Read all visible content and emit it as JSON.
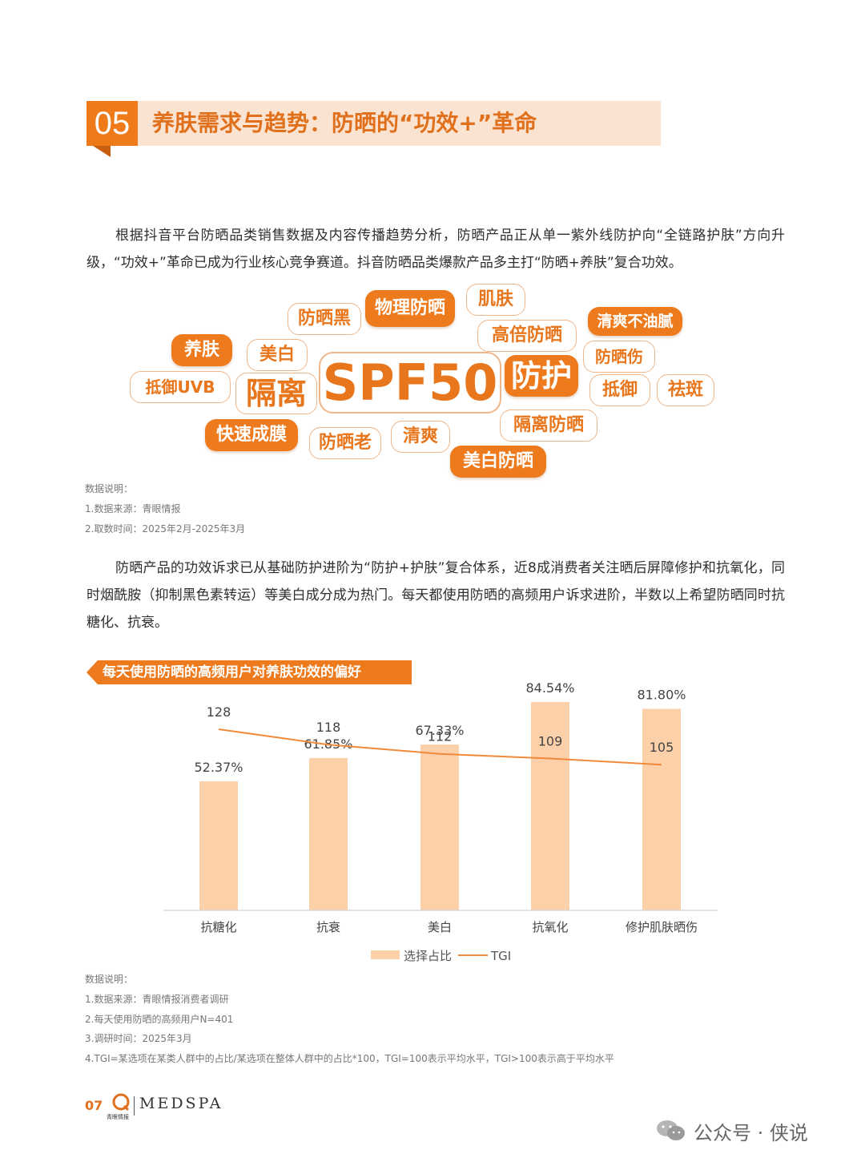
{
  "section": {
    "number": "05",
    "title": "养肤需求与趋势：防晒的“功效+”革命"
  },
  "paragraph1": "根据抖音平台防晒品类销售数据及内容传播趋势分析，防晒产品正从单一紫外线防护向“全链路护肤”方向升级，“功效+”革命已成为行业核心竞争赛道。抖音防晒品类爆款产品多主打“防晒+养肤”复合功效。",
  "word_cloud": {
    "tags": [
      {
        "text": "SPF50",
        "style": "outline",
        "emphasis": "largest"
      },
      {
        "text": "防护",
        "style": "filled",
        "emphasis": "large"
      },
      {
        "text": "隔离",
        "style": "outline",
        "emphasis": "large"
      },
      {
        "text": "物理防晒",
        "style": "filled"
      },
      {
        "text": "防晒黑",
        "style": "outline"
      },
      {
        "text": "肌肤",
        "style": "outline"
      },
      {
        "text": "高倍防晒",
        "style": "outline"
      },
      {
        "text": "清爽不油腻",
        "style": "filled"
      },
      {
        "text": "养肤",
        "style": "filled"
      },
      {
        "text": "美白",
        "style": "outline"
      },
      {
        "text": "防晒伤",
        "style": "outline"
      },
      {
        "text": "抵御UVB",
        "style": "outline"
      },
      {
        "text": "抵御",
        "style": "outline"
      },
      {
        "text": "祛斑",
        "style": "outline"
      },
      {
        "text": "快速成膜",
        "style": "filled"
      },
      {
        "text": "防晒老",
        "style": "outline"
      },
      {
        "text": "清爽",
        "style": "outline"
      },
      {
        "text": "隔离防晒",
        "style": "outline"
      },
      {
        "text": "美白防晒",
        "style": "filled"
      }
    ]
  },
  "notes1": [
    "数据说明：",
    "1.数据来源：青眼情报",
    "2.取数时间：2025年2月-2025年3月"
  ],
  "paragraph2": "防晒产品的功效诉求已从基础防护进阶为“防护+护肤”复合体系，近8成消费者关注晒后屏障修护和抗氧化，同时烟酰胺（抑制黑色素转运）等美白成分成为热门。每天都使用防晒的高频用户诉求进阶，半数以上希望防晒同时抗糖化、抗衰。",
  "chart_banner": "每天使用防晒的高频用户对养肤功效的偏好",
  "chart_data": {
    "type": "bar",
    "title": "每天使用防晒的高频用户对养肤功效的偏好",
    "categories": [
      "抗糖化",
      "抗衰",
      "美白",
      "抗氧化",
      "修护肌肤晒伤"
    ],
    "series": [
      {
        "name": "选择占比",
        "type": "bar",
        "unit": "%",
        "values": [
          52.37,
          61.85,
          67.33,
          84.54,
          81.8
        ],
        "labels": [
          "52.37%",
          "61.85%",
          "67.33%",
          "84.54%",
          "81.80%"
        ]
      },
      {
        "name": "TGI",
        "type": "line",
        "values": [
          128,
          118,
          112,
          109,
          105
        ],
        "labels": [
          "128",
          "118",
          "112",
          "109",
          "105"
        ]
      }
    ],
    "legend_position": "bottom",
    "grid": false,
    "colors": {
      "bar": "#fcd0a8",
      "line": "#f08a3a"
    }
  },
  "notes2": [
    "数据说明：",
    "1.数据来源：青眼情报消费者调研",
    "2.每天使用防晒的高频用户N=401",
    "3.调研时间：2025年3月",
    "4.TGI=某选项在某类人群中的占比/某选项在整体人群中的占比*100，TGI=100表示平均水平，TGI>100表示高于平均水平"
  ],
  "footer": {
    "page": "07",
    "logo_small": "青眼情报",
    "logo_brand": "MEDSPA",
    "watermark": "公众号 · 侠说"
  }
}
